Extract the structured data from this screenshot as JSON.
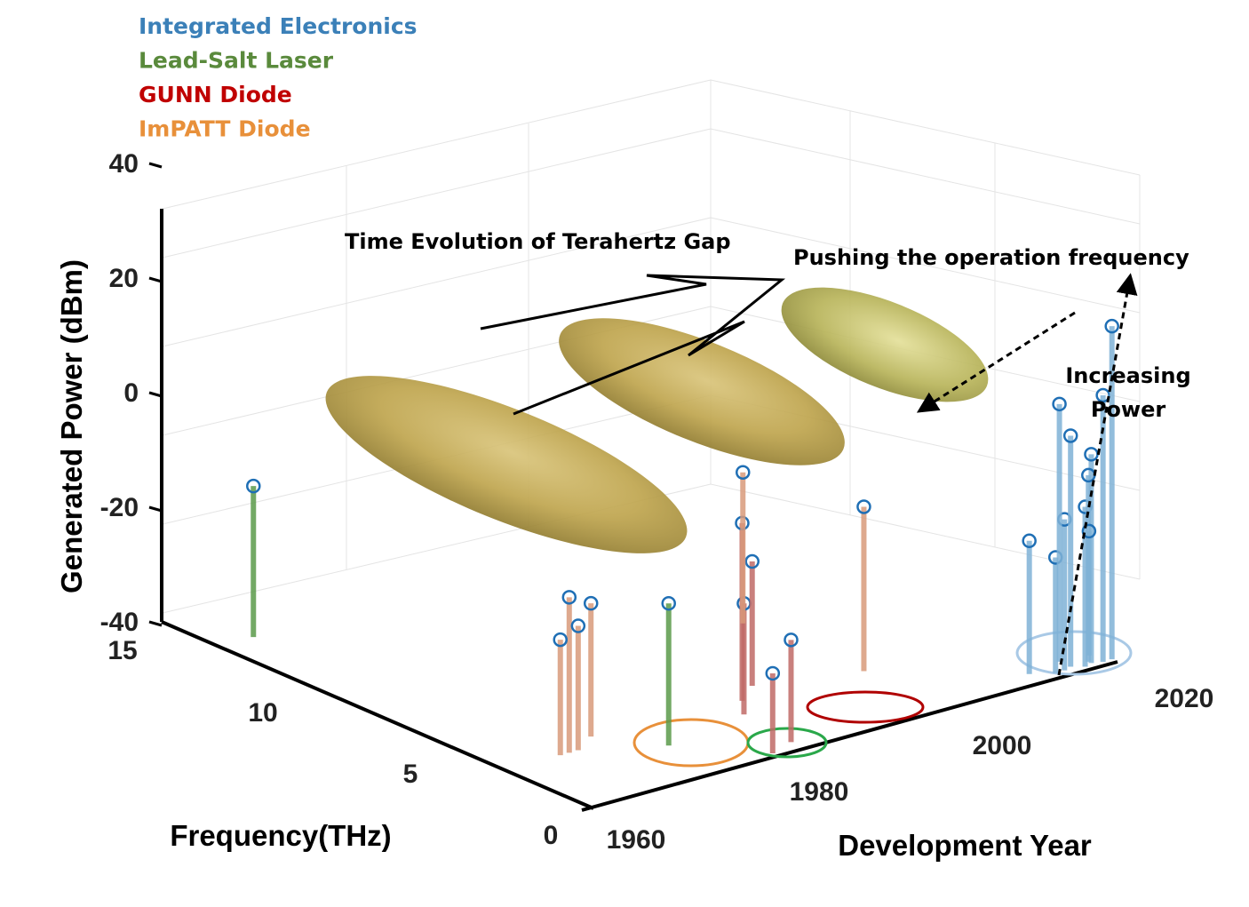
{
  "chart_data": {
    "type": "scatter",
    "title": "",
    "xlabel": "Development Year",
    "ylabel": "Frequency(THz)",
    "zlabel": "Generated Power (dBm)",
    "xlim": [
      1960,
      2020
    ],
    "ylim": [
      0,
      15
    ],
    "zlim": [
      -40,
      40
    ],
    "x_ticks": [
      "1960",
      "1980",
      "2000",
      "2020"
    ],
    "y_ticks": [
      "0",
      "5",
      "10",
      "15"
    ],
    "z_ticks": [
      "-40",
      "-20",
      "0",
      "20",
      "40"
    ],
    "legend_position": "top-left",
    "grid": true,
    "series": [
      {
        "name": "Integrated Electronics",
        "color": "#3b80b8",
        "stem_color": "#7fb2d6",
        "points": [
          {
            "year": 2012,
            "freq": 0.6,
            "power": -10
          },
          {
            "year": 2014,
            "freq": 0.3,
            "power": -14
          },
          {
            "year": 2015,
            "freq": 0.3,
            "power": -6
          },
          {
            "year": 2016,
            "freq": 0.8,
            "power": 18
          },
          {
            "year": 2016,
            "freq": 0.4,
            "power": 12
          },
          {
            "year": 2017,
            "freq": 0.2,
            "power": -4
          },
          {
            "year": 2018,
            "freq": 0.3,
            "power": 7
          },
          {
            "year": 2018,
            "freq": 0.4,
            "power": 2
          },
          {
            "year": 2019,
            "freq": 0.2,
            "power": 20
          },
          {
            "year": 2020,
            "freq": 0.2,
            "power": 35
          },
          {
            "year": 2019,
            "freq": 0.7,
            "power": -12
          }
        ]
      },
      {
        "name": "Lead-Salt Laser",
        "color": "#5a8a3c",
        "stem_color": "#5a9a4a",
        "points": [
          {
            "year": 1964,
            "freq": 13,
            "power": -6
          },
          {
            "year": 1976,
            "freq": 2,
            "power": -8
          }
        ]
      },
      {
        "name": "GUNN Diode",
        "color": "#c00000",
        "stem_color": "#c06a66",
        "points": [
          {
            "year": 1986,
            "freq": 2.5,
            "power": -15
          },
          {
            "year": 1988,
            "freq": 3.2,
            "power": 0
          },
          {
            "year": 1991,
            "freq": 3.8,
            "power": -12
          },
          {
            "year": 1985,
            "freq": 0.5,
            "power": -17
          },
          {
            "year": 1982,
            "freq": 0.2,
            "power": -22
          }
        ]
      },
      {
        "name": "ImPATT Diode",
        "color": "#e8903a",
        "stem_color": "#d89a7a",
        "points": [
          {
            "year": 1968,
            "freq": 3,
            "power": -5
          },
          {
            "year": 1967,
            "freq": 3,
            "power": -14
          },
          {
            "year": 1969,
            "freq": 3,
            "power": -12
          },
          {
            "year": 1972,
            "freq": 3.5,
            "power": -10
          },
          {
            "year": 2001,
            "freq": 3,
            "power": -3
          },
          {
            "year": 2000,
            "freq": 7,
            "power": -6
          }
        ]
      }
    ],
    "annotations": {
      "gap": "Time Evolution of Terahertz Gap",
      "pushing": "Pushing the operation frequency",
      "increasing_line1": "Increasing",
      "increasing_line2": "Power"
    }
  }
}
